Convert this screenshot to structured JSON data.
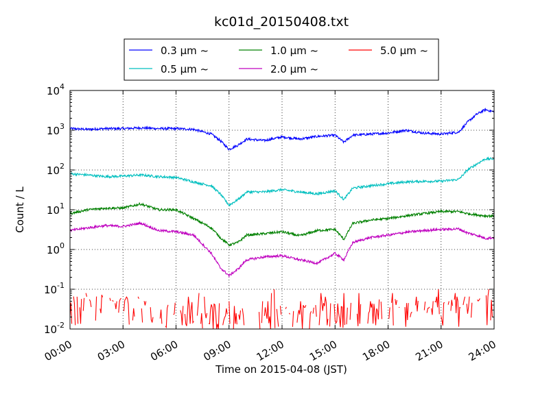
{
  "chart_data": {
    "type": "line",
    "title": "kc01d_20150408.txt",
    "xlabel": "Time on 2015-04-08 (JST)",
    "ylabel": "Count / L",
    "yscale": "log",
    "ylim": [
      0.01,
      10000
    ],
    "xlim": [
      "2015-04-08 00:00",
      "2015-04-09 00:00"
    ],
    "x_ticks": [
      "00:00",
      "03:00",
      "06:00",
      "09:00",
      "12:00",
      "15:00",
      "18:00",
      "21:00",
      "24:00"
    ],
    "y_ticks": [
      {
        "value": 0.01,
        "base": "10",
        "exp": "-2"
      },
      {
        "value": 0.1,
        "base": "10",
        "exp": "-1"
      },
      {
        "value": 1,
        "base": "10",
        "exp": "0"
      },
      {
        "value": 10,
        "base": "10",
        "exp": "1"
      },
      {
        "value": 100,
        "base": "10",
        "exp": "2"
      },
      {
        "value": 1000,
        "base": "10",
        "exp": "3"
      },
      {
        "value": 10000,
        "base": "10",
        "exp": "4"
      }
    ],
    "grid": true,
    "legend_position": "top-center",
    "series": [
      {
        "name": "0.3 µm ~",
        "color": "#0000ff",
        "style": "line",
        "x": [
          "00:00",
          "01:00",
          "02:00",
          "03:00",
          "04:00",
          "05:00",
          "06:00",
          "07:00",
          "08:00",
          "08:30",
          "09:00",
          "09:30",
          "10:00",
          "11:00",
          "12:00",
          "13:00",
          "14:00",
          "15:00",
          "15:30",
          "16:00",
          "17:00",
          "18:00",
          "19:00",
          "20:00",
          "21:00",
          "22:00",
          "22:30",
          "23:00",
          "23:30",
          "24:00"
        ],
        "y": [
          1100,
          1050,
          1100,
          1100,
          1150,
          1100,
          1100,
          1050,
          800,
          550,
          330,
          420,
          600,
          550,
          680,
          600,
          700,
          750,
          500,
          750,
          800,
          850,
          1000,
          850,
          800,
          900,
          1600,
          2500,
          3300,
          2900
        ]
      },
      {
        "name": "0.5 µm ~",
        "color": "#00bfbf",
        "style": "line",
        "x": [
          "00:00",
          "01:00",
          "02:00",
          "03:00",
          "04:00",
          "05:00",
          "06:00",
          "07:00",
          "08:00",
          "08:30",
          "09:00",
          "09:30",
          "10:00",
          "11:00",
          "12:00",
          "13:00",
          "14:00",
          "15:00",
          "15:30",
          "16:00",
          "17:00",
          "18:00",
          "19:00",
          "20:00",
          "21:00",
          "22:00",
          "22:30",
          "23:00",
          "23:30",
          "24:00"
        ],
        "y": [
          80,
          75,
          68,
          70,
          75,
          68,
          65,
          50,
          40,
          25,
          13,
          18,
          28,
          28,
          32,
          28,
          25,
          30,
          18,
          35,
          40,
          45,
          50,
          52,
          52,
          58,
          100,
          140,
          190,
          190
        ]
      },
      {
        "name": "1.0 µm ~",
        "color": "#008000",
        "style": "line",
        "x": [
          "00:00",
          "01:00",
          "02:00",
          "03:00",
          "04:00",
          "05:00",
          "06:00",
          "07:00",
          "08:00",
          "08:30",
          "09:00",
          "09:30",
          "10:00",
          "11:00",
          "12:00",
          "13:00",
          "14:00",
          "15:00",
          "15:30",
          "16:00",
          "17:00",
          "18:00",
          "19:00",
          "20:00",
          "21:00",
          "22:00",
          "22:30",
          "23:00",
          "23:30",
          "24:00"
        ],
        "y": [
          8,
          10,
          11,
          11,
          14,
          10,
          10,
          6,
          3.5,
          2,
          1.3,
          1.5,
          2.3,
          2.5,
          2.8,
          2.2,
          3,
          3.2,
          1.8,
          4.5,
          5.5,
          6,
          7,
          8,
          9,
          9,
          8,
          7.5,
          7,
          7
        ]
      },
      {
        "name": "2.0 µm ~",
        "color": "#bf00bf",
        "style": "line",
        "x": [
          "00:00",
          "01:00",
          "02:00",
          "03:00",
          "04:00",
          "05:00",
          "06:00",
          "07:00",
          "08:00",
          "08:30",
          "09:00",
          "09:30",
          "10:00",
          "11:00",
          "12:00",
          "13:00",
          "14:00",
          "15:00",
          "15:30",
          "16:00",
          "17:00",
          "18:00",
          "19:00",
          "20:00",
          "21:00",
          "22:00",
          "22:30",
          "23:00",
          "23:30",
          "24:00"
        ],
        "y": [
          3,
          3.5,
          4,
          3.8,
          4.6,
          3,
          2.8,
          2.3,
          0.8,
          0.35,
          0.22,
          0.32,
          0.55,
          0.65,
          0.7,
          0.55,
          0.45,
          0.8,
          0.55,
          1.5,
          2,
          2.3,
          2.7,
          3,
          3.2,
          3.3,
          2.6,
          2.3,
          1.9,
          2
        ]
      },
      {
        "name": "5.0 µm ~",
        "color": "#ff0000",
        "style": "noisy-line",
        "x": [
          "00:00",
          "01:00",
          "02:00",
          "03:00",
          "04:00",
          "05:00",
          "06:00",
          "07:00",
          "08:00",
          "09:00",
          "10:00",
          "11:00",
          "12:00",
          "13:00",
          "14:00",
          "15:00",
          "16:00",
          "17:00",
          "18:00",
          "19:00",
          "20:00",
          "21:00",
          "22:00",
          "23:00",
          "24:00"
        ],
        "y": [
          0.03,
          0.035,
          0.03,
          0.03,
          0.025,
          0.022,
          0.022,
          0.02,
          0.018,
          0.02,
          0.018,
          0.016,
          0.018,
          0.018,
          0.02,
          0.02,
          0.022,
          0.025,
          0.025,
          0.025,
          0.022,
          0.022,
          0.025,
          0.03,
          0.03
        ]
      }
    ]
  }
}
